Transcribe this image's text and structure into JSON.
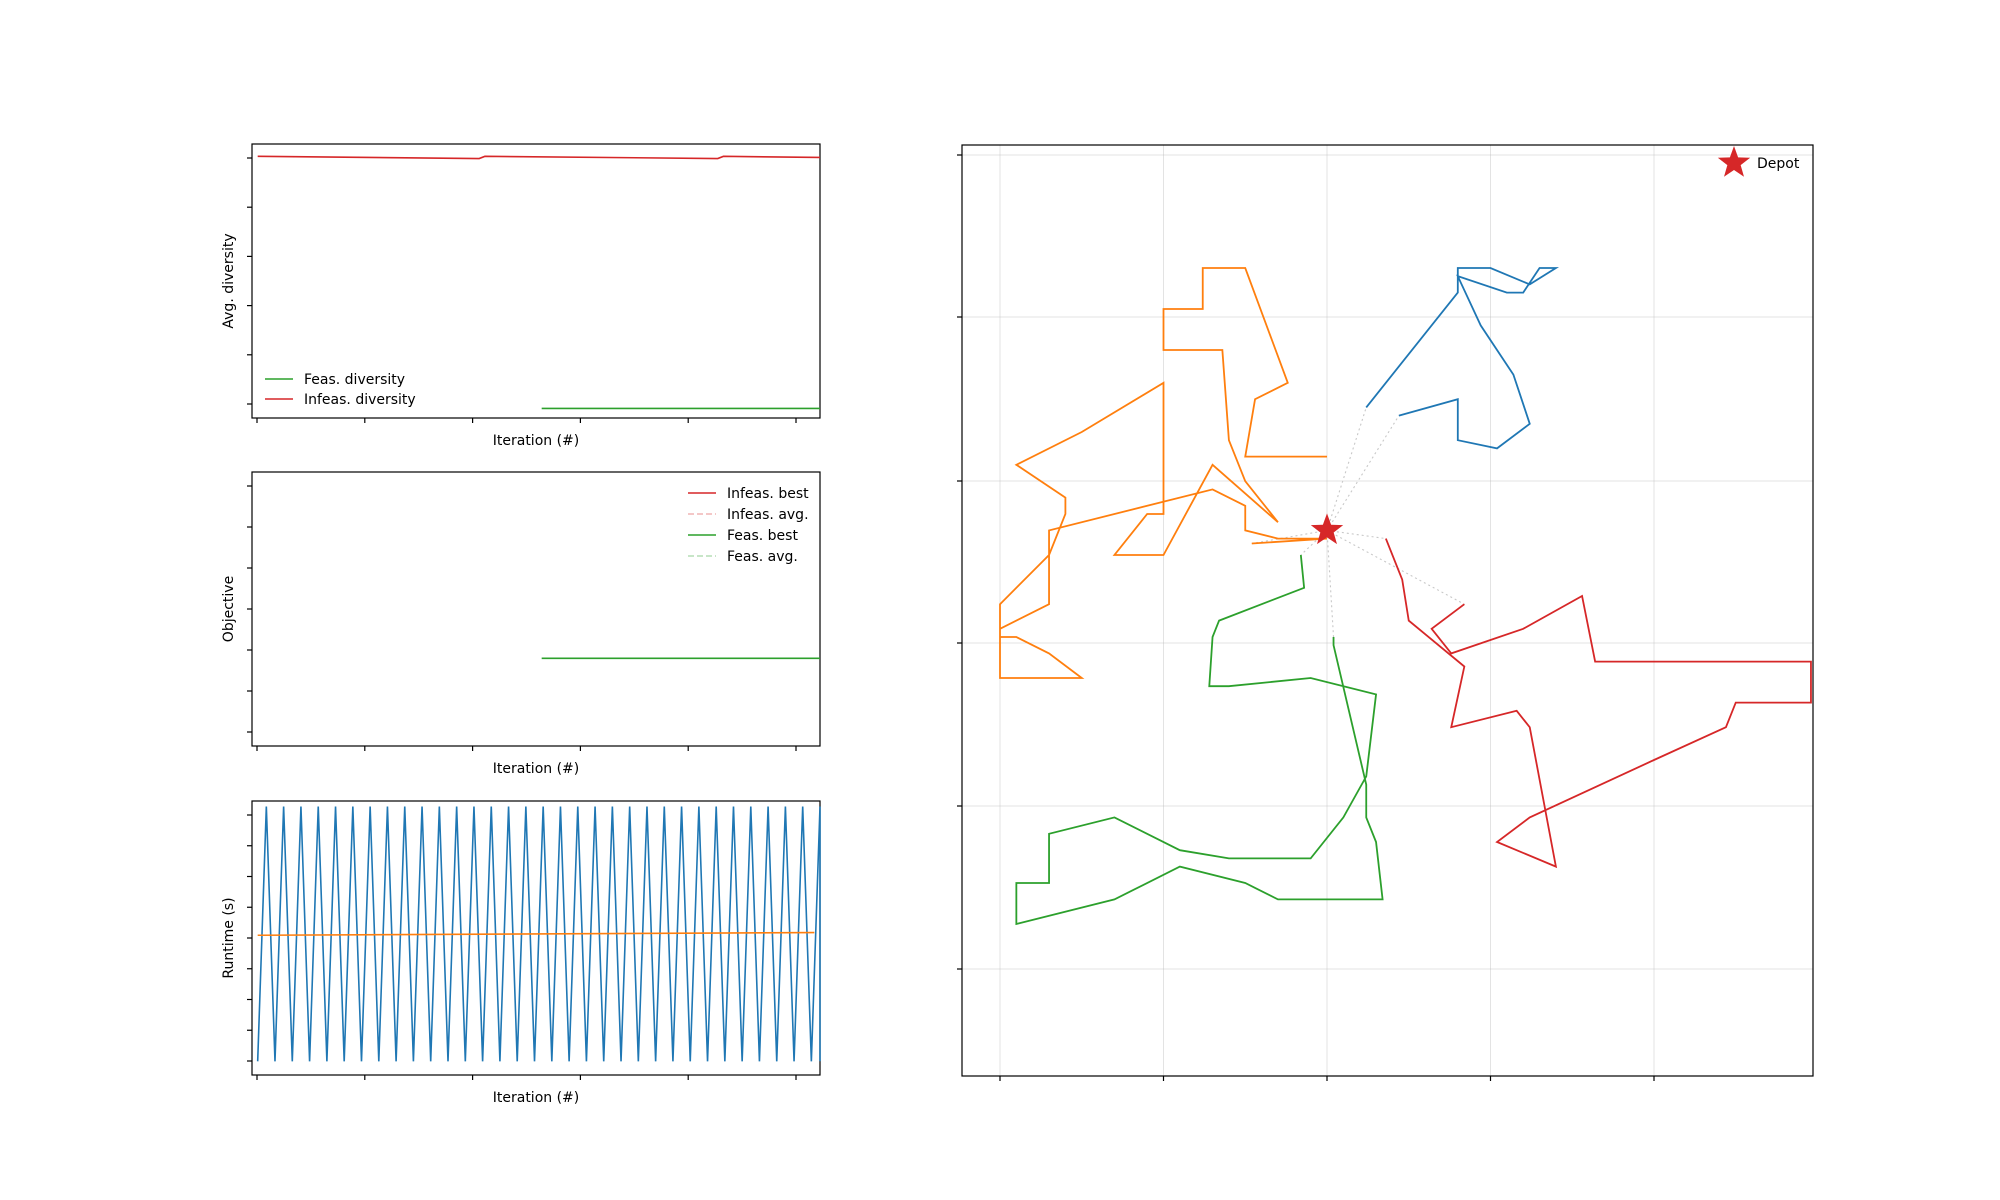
{
  "chart_data": [
    {
      "type": "line",
      "xlabel": "Iteration (#)",
      "ylabel": "Avg. diversity",
      "xlim": [
        0,
        50
      ],
      "ylim": [
        0,
        1
      ],
      "legend_position": "lower-left",
      "series": [
        {
          "name": "Feas. diversity",
          "color": "#2ca02c",
          "points": [
            [
              25.5,
              0.035
            ],
            [
              50,
              0.035
            ]
          ]
        },
        {
          "name": "Infeas. diversity",
          "color": "#d62728",
          "points": [
            [
              0.5,
              0.955
            ],
            [
              20,
              0.947
            ],
            [
              20.5,
              0.955
            ],
            [
              41,
              0.947
            ],
            [
              41.5,
              0.955
            ],
            [
              50,
              0.951
            ]
          ]
        }
      ]
    },
    {
      "type": "line",
      "xlabel": "Iteration (#)",
      "ylabel": "Objective",
      "xlim": [
        0,
        50
      ],
      "ylim": [
        0,
        1
      ],
      "legend_position": "upper-right",
      "series": [
        {
          "name": "Infeas. best",
          "color": "#d62728",
          "dashed": false,
          "alpha": 1,
          "points": []
        },
        {
          "name": "Infeas. avg.",
          "color": "#d62728",
          "dashed": true,
          "alpha": 0.35,
          "points": []
        },
        {
          "name": "Feas. best",
          "color": "#2ca02c",
          "dashed": false,
          "alpha": 1,
          "points": [
            [
              25.5,
              0.32
            ],
            [
              50,
              0.32
            ]
          ]
        },
        {
          "name": "Feas. avg.",
          "color": "#2ca02c",
          "dashed": true,
          "alpha": 0.35,
          "points": []
        }
      ]
    },
    {
      "type": "line",
      "xlabel": "Iteration (#)",
      "ylabel": "Runtime (s)",
      "xlim": [
        0,
        50
      ],
      "ylim": [
        0,
        1
      ],
      "series": [
        {
          "name": "",
          "color": "#1f77b4",
          "pattern": "sawtooth",
          "cycles": 33,
          "x_start": 0.5,
          "x_end": 50,
          "low": 0.05,
          "high": 0.98
        },
        {
          "name": "",
          "color": "#ff7f0e",
          "points": [
            [
              0.5,
              0.51
            ],
            [
              49.5,
              0.52
            ]
          ]
        }
      ]
    },
    {
      "type": "line",
      "xlim": [
        0,
        26
      ],
      "ylim": [
        0,
        57
      ],
      "grid": true,
      "legend_position": "upper-right",
      "depot": {
        "name": "Depot",
        "color": "#d62728",
        "x": 10,
        "y": 31.5
      },
      "routes": [
        {
          "color": "#1f77b4",
          "points": [
            [
              11.2,
              39
            ],
            [
              14,
              46
            ],
            [
              14,
              47.5
            ],
            [
              15,
              47.5
            ],
            [
              16.2,
              46.5
            ],
            [
              17,
              47.5
            ],
            [
              16.5,
              47.5
            ],
            [
              16,
              46
            ],
            [
              16,
              46
            ],
            [
              15.5,
              46
            ],
            [
              14,
              47
            ],
            [
              14.7,
              44
            ],
            [
              15.7,
              41
            ],
            [
              16.2,
              38
            ],
            [
              15.2,
              36.5
            ],
            [
              14,
              37
            ],
            [
              14,
              39.5
            ],
            [
              12.2,
              38.5
            ]
          ]
        },
        {
          "color": "#ff7f0e",
          "points": [
            [
              10,
              36
            ],
            [
              7.5,
              36
            ],
            [
              7.8,
              39.5
            ],
            [
              8.8,
              40.5
            ],
            [
              7.5,
              47.5
            ],
            [
              6.2,
              47.5
            ],
            [
              6.2,
              45
            ],
            [
              5,
              45
            ],
            [
              5,
              42.5
            ],
            [
              6.8,
              42.5
            ],
            [
              7,
              37
            ],
            [
              7.5,
              34.5
            ],
            [
              8.5,
              32
            ],
            [
              6.5,
              35.5
            ],
            [
              5,
              30
            ],
            [
              3.5,
              30
            ],
            [
              4.5,
              32.5
            ],
            [
              5,
              32.5
            ],
            [
              5,
              40.5
            ],
            [
              2.5,
              37.5
            ],
            [
              0.5,
              35.5
            ],
            [
              2,
              33.5
            ],
            [
              2,
              32.5
            ],
            [
              1.5,
              30
            ],
            [
              0,
              27
            ],
            [
              0,
              25
            ],
            [
              0.5,
              25
            ],
            [
              1.5,
              24
            ],
            [
              2.5,
              22.5
            ],
            [
              2.5,
              22.5
            ],
            [
              1.5,
              22.5
            ],
            [
              0,
              22.5
            ],
            [
              0,
              25.5
            ],
            [
              1.5,
              27
            ],
            [
              1.5,
              31.5
            ],
            [
              6.5,
              34
            ],
            [
              7.5,
              33
            ],
            [
              7.5,
              31.5
            ],
            [
              7.5,
              31.5
            ],
            [
              8.5,
              31
            ],
            [
              10,
              31
            ],
            [
              10,
              31
            ],
            [
              7.7,
              30.7
            ]
          ]
        },
        {
          "color": "#2ca02c",
          "points": [
            [
              9.2,
              30
            ],
            [
              9.3,
              28
            ],
            [
              6.7,
              26
            ],
            [
              6.5,
              25
            ],
            [
              6.4,
              22
            ],
            [
              6.4,
              22
            ],
            [
              7,
              22
            ],
            [
              9.5,
              22.5
            ],
            [
              11.5,
              21.5
            ],
            [
              11.2,
              16.5
            ],
            [
              10.5,
              14
            ],
            [
              9.5,
              11.5
            ],
            [
              7,
              11.5
            ],
            [
              5.5,
              12
            ],
            [
              3.5,
              14
            ],
            [
              1.5,
              13
            ],
            [
              1.5,
              10
            ],
            [
              0.5,
              10
            ],
            [
              0.5,
              7.5
            ],
            [
              3.5,
              9
            ],
            [
              5.5,
              11
            ],
            [
              7.5,
              10
            ],
            [
              8.5,
              9
            ],
            [
              10,
              9
            ],
            [
              11,
              9
            ],
            [
              11.7,
              9
            ],
            [
              11.5,
              12.5
            ],
            [
              11.2,
              14
            ],
            [
              11.2,
              16
            ],
            [
              10.2,
              24.5
            ],
            [
              10.2,
              25
            ]
          ]
        },
        {
          "color": "#d62728",
          "points": [
            [
              11.8,
              31
            ],
            [
              12.3,
              28.5
            ],
            [
              12.5,
              26
            ],
            [
              14.2,
              23.2
            ],
            [
              13.8,
              19.5
            ],
            [
              15.8,
              20.5
            ],
            [
              16.2,
              19.5
            ],
            [
              17,
              11
            ],
            [
              15.2,
              12.5
            ],
            [
              16.2,
              14
            ],
            [
              20,
              17.5
            ],
            [
              22.2,
              19.5
            ],
            [
              22.5,
              21
            ],
            [
              24.8,
              21
            ],
            [
              24.8,
              23.5
            ],
            [
              18.2,
              23.5
            ],
            [
              17.8,
              27.5
            ],
            [
              16,
              25.5
            ],
            [
              13.8,
              24
            ],
            [
              13.2,
              25.5
            ],
            [
              14.2,
              27
            ]
          ]
        }
      ],
      "depot_links": [
        [
          [
            10,
            31.5
          ],
          [
            11.2,
            39
          ]
        ],
        [
          [
            10,
            31.5
          ],
          [
            12.2,
            38.5
          ]
        ],
        [
          [
            10,
            31.5
          ],
          [
            7.7,
            30.7
          ]
        ],
        [
          [
            10,
            31.5
          ],
          [
            9.2,
            30
          ]
        ],
        [
          [
            10,
            31.5
          ],
          [
            10.2,
            25
          ]
        ],
        [
          [
            10,
            31.5
          ],
          [
            11.8,
            31
          ]
        ],
        [
          [
            10,
            31.5
          ],
          [
            14.2,
            27
          ]
        ]
      ]
    }
  ]
}
